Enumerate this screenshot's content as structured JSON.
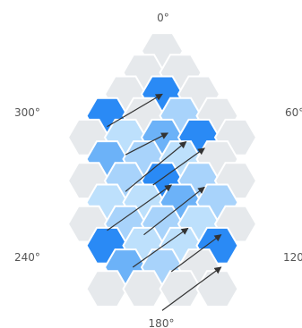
{
  "labels": {
    "deg_0": "0°",
    "deg_60": "60°",
    "deg_120": "120",
    "deg_180": "180°",
    "deg_240": "240°",
    "deg_300": "300°"
  },
  "colors": {
    "empty": "#e6e9ec",
    "strong": "#2a8af5",
    "medium": "#6cb2f8",
    "light": "#a8d3fb",
    "pale": "#bde0fc",
    "arrow": "#333333"
  },
  "cells": [
    {
      "col": 0,
      "row": 0,
      "fill": "empty"
    },
    {
      "col": -1,
      "row": 1,
      "fill": "empty"
    },
    {
      "col": 1,
      "row": 1,
      "fill": "empty"
    },
    {
      "col": -2,
      "row": 2,
      "fill": "empty"
    },
    {
      "col": 0,
      "row": 2,
      "fill": "strong"
    },
    {
      "col": 2,
      "row": 2,
      "fill": "empty"
    },
    {
      "col": -3,
      "row": 3,
      "fill": "strong"
    },
    {
      "col": -1,
      "row": 3,
      "fill": "empty"
    },
    {
      "col": 1,
      "row": 3,
      "fill": "light"
    },
    {
      "col": 3,
      "row": 3,
      "fill": "empty"
    },
    {
      "col": -4,
      "row": 4,
      "fill": "empty"
    },
    {
      "col": -2,
      "row": 4,
      "fill": "pale"
    },
    {
      "col": 0,
      "row": 4,
      "fill": "medium"
    },
    {
      "col": 2,
      "row": 4,
      "fill": "strong"
    },
    {
      "col": 4,
      "row": 4,
      "fill": "empty"
    },
    {
      "col": -3,
      "row": 5,
      "fill": "medium"
    },
    {
      "col": -1,
      "row": 5,
      "fill": "light"
    },
    {
      "col": 1,
      "row": 5,
      "fill": "pale"
    },
    {
      "col": 3,
      "row": 5,
      "fill": "empty"
    },
    {
      "col": -4,
      "row": 6,
      "fill": "empty"
    },
    {
      "col": -2,
      "row": 6,
      "fill": "light"
    },
    {
      "col": 0,
      "row": 6,
      "fill": "strong"
    },
    {
      "col": 2,
      "row": 6,
      "fill": "light"
    },
    {
      "col": 4,
      "row": 6,
      "fill": "empty"
    },
    {
      "col": -3,
      "row": 7,
      "fill": "pale"
    },
    {
      "col": -1,
      "row": 7,
      "fill": "pale"
    },
    {
      "col": 1,
      "row": 7,
      "fill": "medium"
    },
    {
      "col": 3,
      "row": 7,
      "fill": "light"
    },
    {
      "col": -4,
      "row": 8,
      "fill": "empty"
    },
    {
      "col": -2,
      "row": 8,
      "fill": "light"
    },
    {
      "col": 0,
      "row": 8,
      "fill": "light"
    },
    {
      "col": 2,
      "row": 8,
      "fill": "pale"
    },
    {
      "col": 4,
      "row": 8,
      "fill": "empty"
    },
    {
      "col": -3,
      "row": 9,
      "fill": "strong"
    },
    {
      "col": -1,
      "row": 9,
      "fill": "pale"
    },
    {
      "col": 1,
      "row": 9,
      "fill": "pale"
    },
    {
      "col": 3,
      "row": 9,
      "fill": "strong"
    },
    {
      "col": -2,
      "row": 10,
      "fill": "medium"
    },
    {
      "col": 0,
      "row": 10,
      "fill": "light"
    },
    {
      "col": 2,
      "row": 10,
      "fill": "empty"
    },
    {
      "col": -3,
      "row": 11,
      "fill": "empty"
    },
    {
      "col": -1,
      "row": 11,
      "fill": "empty"
    },
    {
      "col": 1,
      "row": 11,
      "fill": "empty"
    },
    {
      "col": 3,
      "row": 11,
      "fill": "empty"
    },
    {
      "col": 0,
      "row": 12,
      "fill": "strong"
    },
    {
      "col": -2,
      "row": 12,
      "fill": "empty"
    },
    {
      "col": 2,
      "row": 12,
      "fill": "empty"
    },
    {
      "col": -1,
      "row": 13,
      "fill": "empty"
    },
    {
      "col": 1,
      "row": 13,
      "fill": "empty"
    }
  ],
  "arrows": [
    {
      "from": [
        -3,
        3.5
      ],
      "to": [
        0,
        2
      ]
    },
    {
      "from": [
        -2,
        6.5
      ],
      "to": [
        1.3,
        4.2
      ]
    },
    {
      "from": [
        -2,
        4.8
      ],
      "to": [
        0.3,
        3.8
      ]
    },
    {
      "from": [
        -0.5,
        6.2
      ],
      "to": [
        2.3,
        4.5
      ]
    },
    {
      "from": [
        -3,
        8.3
      ],
      "to": [
        0.5,
        6.2
      ]
    },
    {
      "from": [
        -1,
        8.5
      ],
      "to": [
        2.3,
        6.3
      ]
    },
    {
      "from": [
        -1.6,
        10.0
      ],
      "to": [
        1.4,
        8.2
      ]
    },
    {
      "from": [
        0.5,
        10.2
      ],
      "to": [
        3.2,
        8.5
      ]
    },
    {
      "from": [
        0,
        12.0
      ],
      "to": [
        3.2,
        10.0
      ]
    }
  ]
}
